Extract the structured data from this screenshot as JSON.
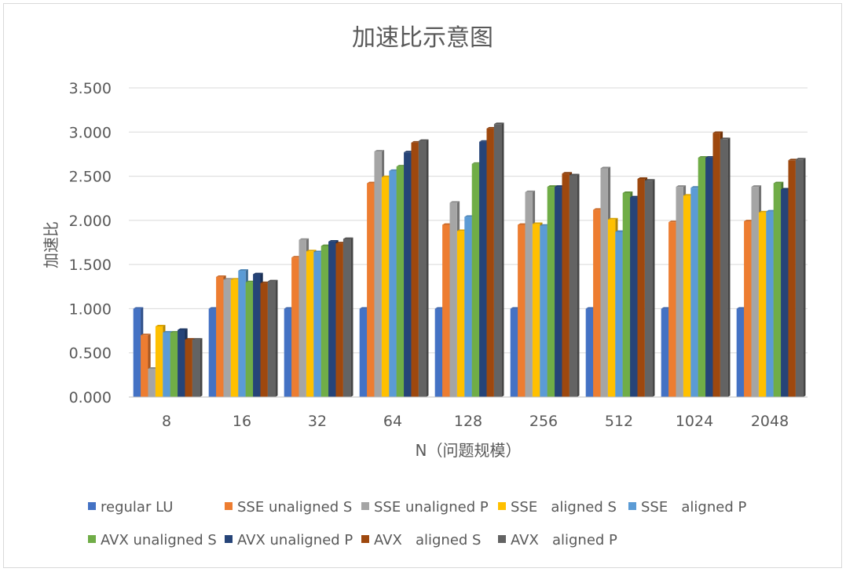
{
  "chart_data": {
    "type": "bar",
    "title": "加速比示意图",
    "xlabel": "N（问题规模）",
    "ylabel": "加速比",
    "ylim": [
      0,
      3.5
    ],
    "y_ticks": [
      "0.000",
      "0.500",
      "1.000",
      "1.500",
      "2.000",
      "2.500",
      "3.000",
      "3.500"
    ],
    "grid": true,
    "legend_position": "bottom",
    "categories": [
      "8",
      "16",
      "32",
      "64",
      "128",
      "256",
      "512",
      "1024",
      "2048"
    ],
    "series": [
      {
        "name": "regular LU",
        "color": "#4472C4",
        "values": [
          1.0,
          1.0,
          1.0,
          1.0,
          1.0,
          1.0,
          1.0,
          1.0,
          1.0
        ]
      },
      {
        "name": "SSE unaligned S",
        "color": "#ED7D31",
        "values": [
          0.7,
          1.36,
          1.58,
          2.42,
          1.95,
          1.95,
          2.12,
          1.98,
          1.99
        ]
      },
      {
        "name": "SSE unaligned P",
        "color": "#A5A5A5",
        "values": [
          0.32,
          1.33,
          1.78,
          2.78,
          2.2,
          2.32,
          2.59,
          2.38,
          2.38
        ]
      },
      {
        "name": "SSE   aligned S",
        "color": "#FFC000",
        "values": [
          0.8,
          1.33,
          1.65,
          2.49,
          1.88,
          1.96,
          2.01,
          2.28,
          2.09
        ]
      },
      {
        "name": "SSE   aligned P",
        "color": "#5B9BD5",
        "values": [
          0.73,
          1.43,
          1.64,
          2.56,
          2.04,
          1.94,
          1.87,
          2.37,
          2.1
        ]
      },
      {
        "name": "AVX unaligned S",
        "color": "#70AD47",
        "values": [
          0.73,
          1.3,
          1.71,
          2.61,
          2.64,
          2.38,
          2.31,
          2.71,
          2.42
        ]
      },
      {
        "name": "AVX unaligned P",
        "color": "#264478",
        "values": [
          0.76,
          1.39,
          1.76,
          2.77,
          2.89,
          2.38,
          2.26,
          2.71,
          2.35
        ]
      },
      {
        "name": "AVX   aligned S",
        "color": "#9E480E",
        "values": [
          0.65,
          1.29,
          1.74,
          2.88,
          3.04,
          2.53,
          2.47,
          2.99,
          2.68
        ]
      },
      {
        "name": "AVX   aligned P",
        "color": "#636363",
        "values": [
          0.65,
          1.31,
          1.79,
          2.9,
          3.09,
          2.51,
          2.45,
          2.92,
          2.69
        ]
      }
    ]
  }
}
